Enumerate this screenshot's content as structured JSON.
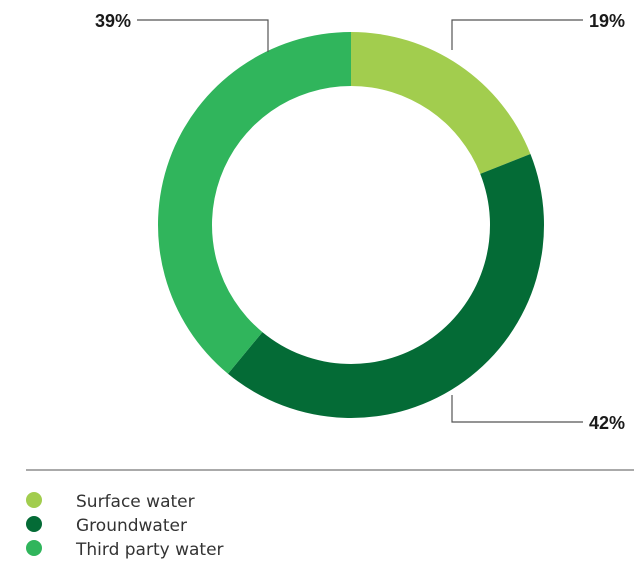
{
  "chart_data": {
    "type": "pie",
    "title": "",
    "categories": [
      "Surface water",
      "Groundwater",
      "Third party water"
    ],
    "values": [
      19,
      42,
      39
    ],
    "value_labels": [
      "19%",
      "42%",
      "39%"
    ],
    "unit": "%",
    "donut": true,
    "legend": "bottom-left",
    "colors": [
      "#a2cd4e",
      "#046b36",
      "#30b55c"
    ]
  }
}
